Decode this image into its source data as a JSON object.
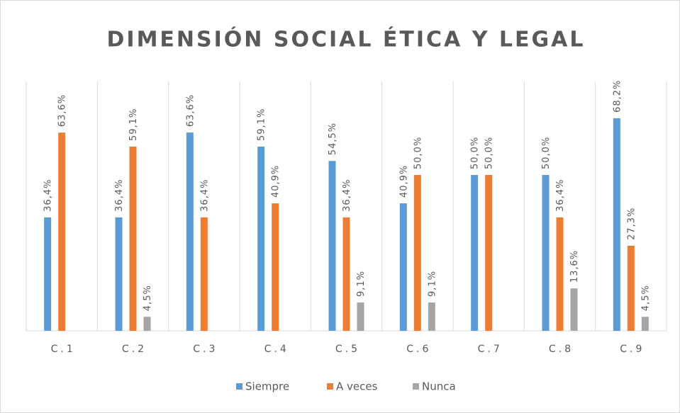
{
  "chart_data": {
    "type": "bar",
    "title": "DIMENSIÓN SOCIAL ÉTICA Y LEGAL",
    "categories": [
      "C.1",
      "C.2",
      "C.3",
      "C.4",
      "C.5",
      "C.6",
      "C.7",
      "C.8",
      "C.9"
    ],
    "series": [
      {
        "name": "Siempre",
        "color": "#5b9bd5",
        "values": [
          36.4,
          36.4,
          63.6,
          59.1,
          54.5,
          40.9,
          50.0,
          50.0,
          68.2
        ],
        "value_labels": [
          "36,4%",
          "36,4%",
          "63,6%",
          "59,1%",
          "54,5%",
          "40,9%",
          "50,0%",
          "50,0%",
          "68,2%"
        ]
      },
      {
        "name": "A veces",
        "color": "#ed7d31",
        "values": [
          63.6,
          59.1,
          36.4,
          40.9,
          36.4,
          50.0,
          50.0,
          36.4,
          27.3
        ],
        "value_labels": [
          "63,6%",
          "59,1%",
          "36,4%",
          "40,9%",
          "36,4%",
          "50,0%",
          "50,0%",
          "36,4%",
          "27,3%"
        ]
      },
      {
        "name": "Nunca",
        "color": "#a5a5a5",
        "values": [
          null,
          4.5,
          null,
          null,
          9.1,
          9.1,
          null,
          13.6,
          4.5
        ],
        "value_labels": [
          null,
          "4,5%",
          null,
          null,
          "9,1%",
          "9,1%",
          null,
          "13,6%",
          "4,5%"
        ]
      }
    ],
    "legend": "bottom"
  }
}
